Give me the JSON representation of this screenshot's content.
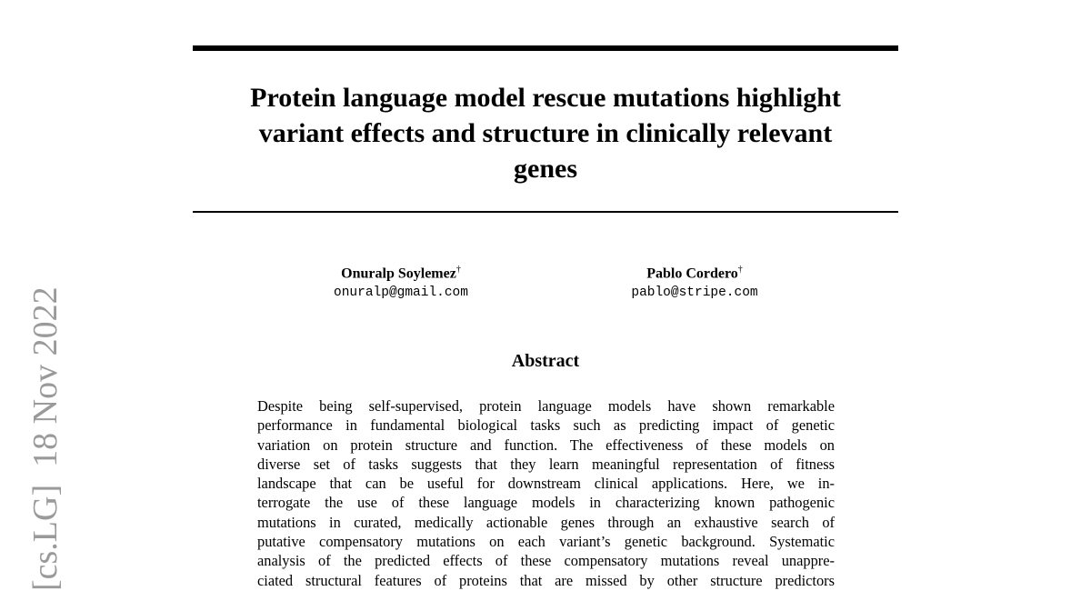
{
  "arxiv_stamp": {
    "category": "[cs.LG]",
    "date": "18 Nov 2022"
  },
  "title": {
    "lines": [
      "Protein language model rescue mutations highlight",
      "variant effects and structure in clinically relevant",
      "genes"
    ]
  },
  "authors": [
    {
      "name": "Onuralp Soylemez",
      "mark": "†",
      "email": "onuralp@gmail.com"
    },
    {
      "name": "Pablo Cordero",
      "mark": "†",
      "email": "pablo@stripe.com"
    }
  ],
  "abstract": {
    "heading": "Abstract",
    "lines": [
      "Despite being self-supervised, protein language models have shown remarkable",
      "performance in fundamental biological tasks such as predicting impact of genetic",
      "variation on protein structure and function. The effectiveness of these models on",
      "diverse set of tasks suggests that they learn meaningful representation of fitness",
      "landscape that can be useful for downstream clinical applications. Here, we in-",
      "terrogate the use of these language models in characterizing known pathogenic",
      "mutations in curated, medically actionable genes through an exhaustive search of",
      "putative compensatory mutations on each variant’s genetic background. Systematic",
      "analysis of the predicted effects of these compensatory mutations reveal unappre-",
      "ciated structural features of proteins that are missed by other structure predictors"
    ]
  }
}
